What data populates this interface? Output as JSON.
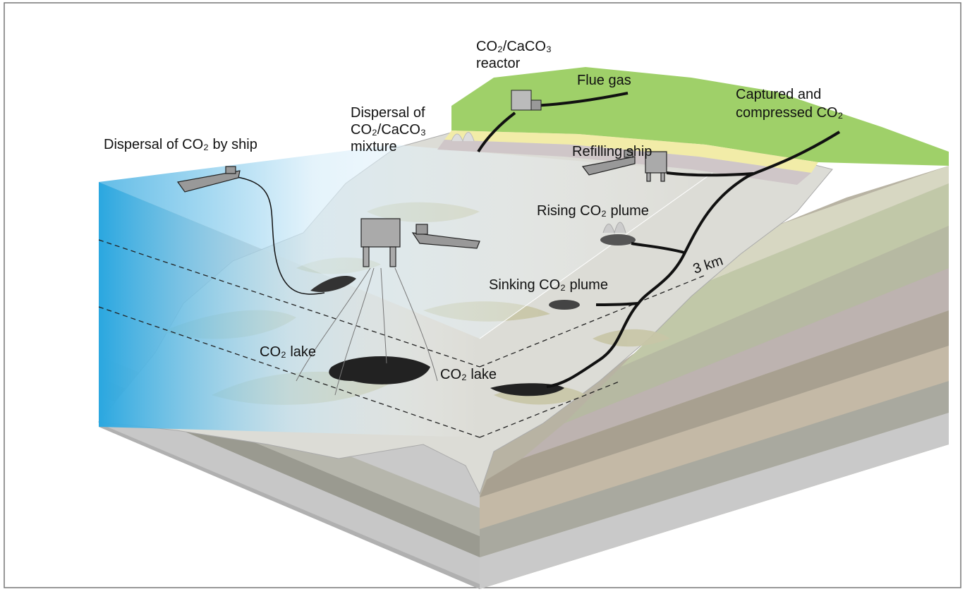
{
  "labels": [
    {
      "lines": [
        "CO₂/CaCO₃",
        "reactor"
      ]
    },
    {
      "lines": [
        "Flue gas"
      ]
    },
    {
      "lines": [
        "Captured and",
        "compressed CO₂"
      ]
    },
    {
      "lines": [
        "Dispersal of",
        "CO₂/CaCO₃",
        "mixture"
      ]
    },
    {
      "lines": [
        "Dispersal of CO₂ by ship"
      ]
    },
    {
      "lines": [
        "Refilling ship"
      ]
    },
    {
      "lines": [
        "Rising CO₂ plume"
      ]
    },
    {
      "lines": [
        "3 km"
      ]
    },
    {
      "lines": [
        "Sinking CO₂ plume"
      ]
    },
    {
      "lines": [
        "CO₂ lake"
      ]
    },
    {
      "lines": [
        "CO₂ lake"
      ]
    }
  ]
}
